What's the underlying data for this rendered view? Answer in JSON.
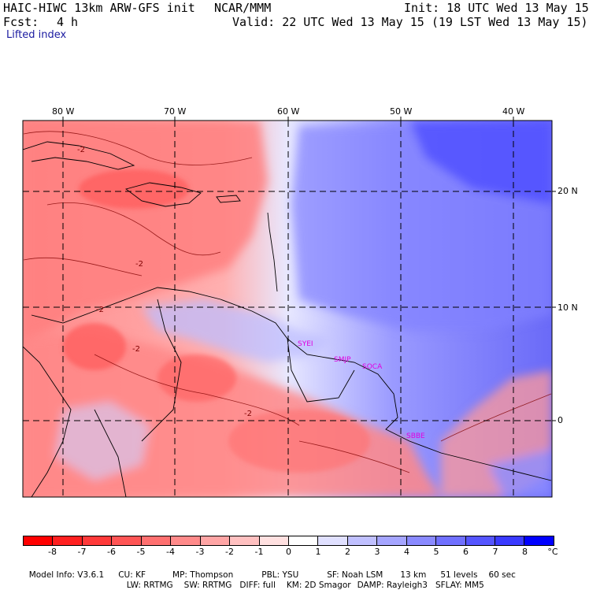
{
  "header": {
    "model": "HAIC-HIWC 13km ARW-GFS init",
    "org": "NCAR/MMM",
    "init": "Init: 18 UTC Wed 13 May 15",
    "fcst_label": "Fcst:",
    "fcst_value": "4 h",
    "valid": "Valid: 22 UTC Wed 13 May 15 (19 LST Wed 13 May 15)",
    "field": "Lifted index"
  },
  "axes": {
    "lon_labels": [
      "80 W",
      "70 W",
      "60 W",
      "50 W",
      "40 W"
    ],
    "lat_labels": [
      "20 N",
      "10 N",
      "0"
    ]
  },
  "stations": [
    "SYEI",
    "SMJP",
    "SOCA",
    "SBBE"
  ],
  "contour_labels": [
    "-2",
    "-2",
    "-2",
    "-2",
    "-2"
  ],
  "colorbar": {
    "unit": "°C",
    "labels": [
      "-8",
      "-7",
      "-6",
      "-5",
      "-4",
      "-3",
      "-2",
      "-1",
      "0",
      "1",
      "2",
      "3",
      "4",
      "5",
      "6",
      "7",
      "8"
    ],
    "colors": [
      "#ff0000",
      "#ff2020",
      "#ff3a3a",
      "#ff5555",
      "#ff7070",
      "#ff8a8a",
      "#ffa5a5",
      "#ffc0c0",
      "#ffe0e0",
      "#ffffff",
      "#e0e0ff",
      "#c0c0ff",
      "#a5a5ff",
      "#8a8aff",
      "#7070ff",
      "#5555ff",
      "#3a3aff",
      "#0000ff"
    ]
  },
  "footer": {
    "line1": [
      "Model Info: V3.6.1",
      "CU: KF",
      "MP: Thompson",
      "PBL: YSU",
      "SF: Noah LSM",
      "13 km",
      "51 levels",
      "60 sec"
    ],
    "line2": [
      "LW: RRTMG",
      "SW: RRTMG",
      "DIFF: full",
      "KM: 2D Smagor",
      "DAMP: Rayleigh3",
      "SFLAY: MM5"
    ]
  }
}
